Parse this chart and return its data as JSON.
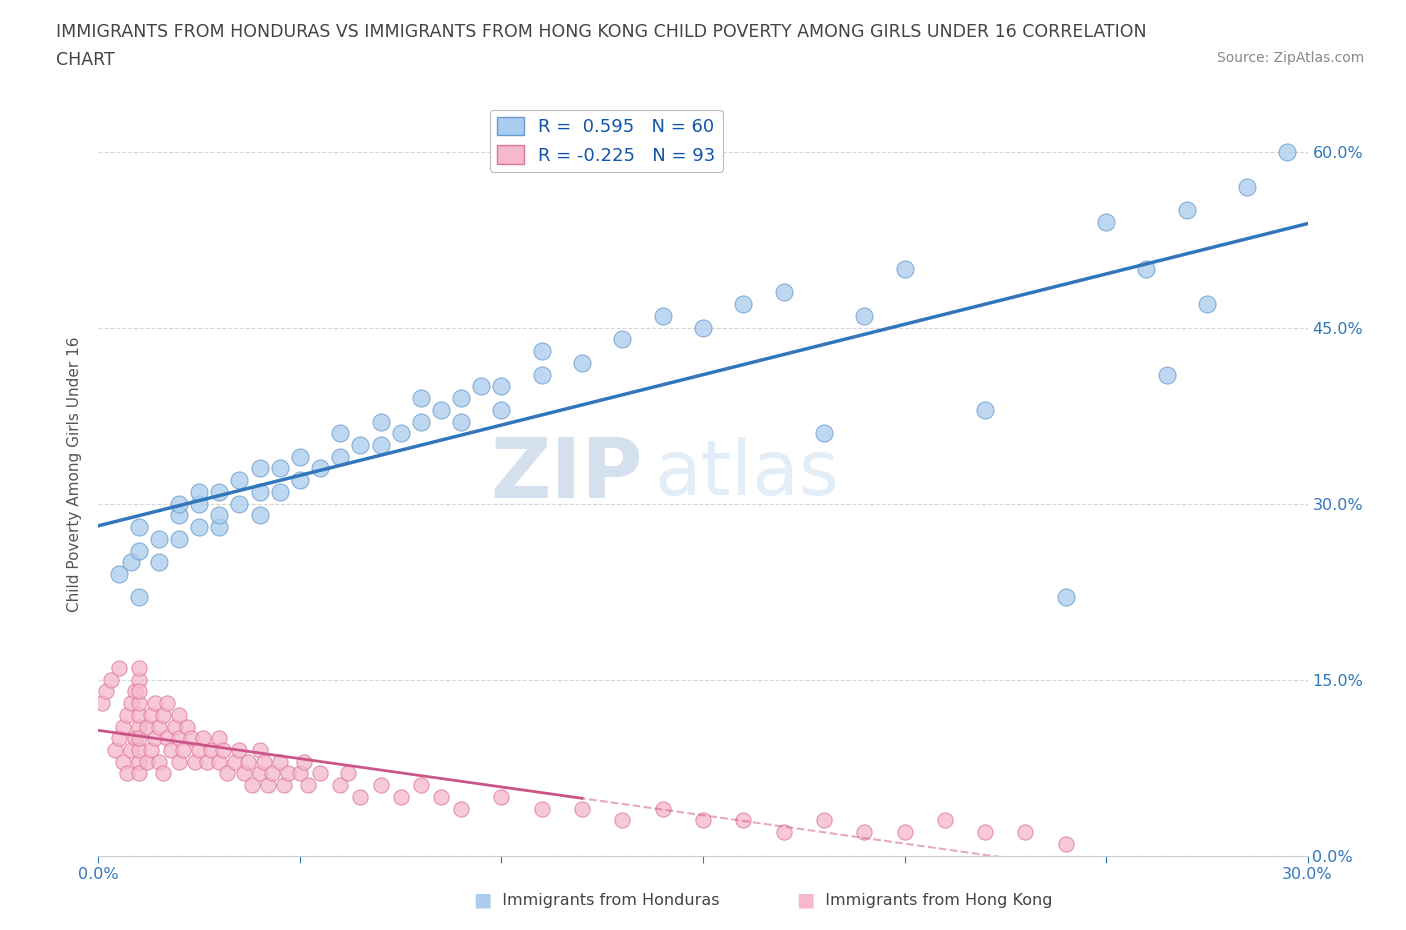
{
  "title_line1": "IMMIGRANTS FROM HONDURAS VS IMMIGRANTS FROM HONG KONG CHILD POVERTY AMONG GIRLS UNDER 16 CORRELATION",
  "title_line2": "CHART",
  "source": "Source: ZipAtlas.com",
  "ylabel": "Child Poverty Among Girls Under 16",
  "xlabel_honduras": "Immigrants from Honduras",
  "xlabel_hongkong": "Immigrants from Hong Kong",
  "xlim": [
    0.0,
    0.3
  ],
  "ylim": [
    0.0,
    0.65
  ],
  "yticks": [
    0.0,
    0.15,
    0.3,
    0.45,
    0.6
  ],
  "xticks": [
    0.0,
    0.05,
    0.1,
    0.15,
    0.2,
    0.25,
    0.3
  ],
  "honduras_R": 0.595,
  "honduras_N": 60,
  "hongkong_R": -0.225,
  "hongkong_N": 93,
  "honduras_color": "#aaccee",
  "honduras_edge_color": "#6699cc",
  "honduras_line_color": "#3377bb",
  "hongkong_color": "#f5b8cc",
  "hongkong_edge_color": "#dd7799",
  "hongkong_line_color": "#cc5588",
  "legend_R_color": "#1155aa",
  "watermark_zip": "ZIP",
  "watermark_atlas": "atlas",
  "background_color": "#ffffff",
  "title_color": "#444444",
  "title_fontsize": 12.5,
  "source_fontsize": 10,
  "hon_x": [
    0.005,
    0.008,
    0.01,
    0.01,
    0.01,
    0.015,
    0.015,
    0.02,
    0.02,
    0.02,
    0.025,
    0.025,
    0.025,
    0.03,
    0.03,
    0.03,
    0.035,
    0.035,
    0.04,
    0.04,
    0.04,
    0.045,
    0.045,
    0.05,
    0.05,
    0.055,
    0.06,
    0.06,
    0.065,
    0.07,
    0.07,
    0.075,
    0.08,
    0.08,
    0.085,
    0.09,
    0.09,
    0.095,
    0.1,
    0.1,
    0.11,
    0.11,
    0.12,
    0.13,
    0.14,
    0.15,
    0.16,
    0.17,
    0.18,
    0.19,
    0.2,
    0.22,
    0.24,
    0.25,
    0.26,
    0.265,
    0.27,
    0.275,
    0.285,
    0.295
  ],
  "hon_y": [
    0.24,
    0.25,
    0.22,
    0.26,
    0.28,
    0.25,
    0.27,
    0.27,
    0.29,
    0.3,
    0.28,
    0.3,
    0.31,
    0.28,
    0.29,
    0.31,
    0.3,
    0.32,
    0.29,
    0.31,
    0.33,
    0.31,
    0.33,
    0.32,
    0.34,
    0.33,
    0.34,
    0.36,
    0.35,
    0.35,
    0.37,
    0.36,
    0.37,
    0.39,
    0.38,
    0.37,
    0.39,
    0.4,
    0.38,
    0.4,
    0.41,
    0.43,
    0.42,
    0.44,
    0.46,
    0.45,
    0.47,
    0.48,
    0.36,
    0.46,
    0.5,
    0.38,
    0.22,
    0.54,
    0.5,
    0.41,
    0.55,
    0.47,
    0.57,
    0.6
  ],
  "hk_x": [
    0.001,
    0.002,
    0.003,
    0.004,
    0.005,
    0.005,
    0.006,
    0.006,
    0.007,
    0.007,
    0.008,
    0.008,
    0.009,
    0.009,
    0.01,
    0.01,
    0.01,
    0.01,
    0.01,
    0.01,
    0.01,
    0.01,
    0.01,
    0.01,
    0.012,
    0.012,
    0.013,
    0.013,
    0.014,
    0.014,
    0.015,
    0.015,
    0.016,
    0.016,
    0.017,
    0.017,
    0.018,
    0.019,
    0.02,
    0.02,
    0.02,
    0.021,
    0.022,
    0.023,
    0.024,
    0.025,
    0.026,
    0.027,
    0.028,
    0.03,
    0.03,
    0.031,
    0.032,
    0.034,
    0.035,
    0.036,
    0.037,
    0.038,
    0.04,
    0.04,
    0.041,
    0.042,
    0.043,
    0.045,
    0.046,
    0.047,
    0.05,
    0.051,
    0.052,
    0.055,
    0.06,
    0.062,
    0.065,
    0.07,
    0.075,
    0.08,
    0.085,
    0.09,
    0.1,
    0.11,
    0.12,
    0.13,
    0.14,
    0.15,
    0.16,
    0.17,
    0.18,
    0.19,
    0.2,
    0.21,
    0.22,
    0.23,
    0.24
  ],
  "hk_y": [
    0.13,
    0.14,
    0.15,
    0.09,
    0.1,
    0.16,
    0.11,
    0.08,
    0.12,
    0.07,
    0.13,
    0.09,
    0.14,
    0.1,
    0.15,
    0.11,
    0.08,
    0.12,
    0.09,
    0.13,
    0.1,
    0.14,
    0.07,
    0.16,
    0.11,
    0.08,
    0.12,
    0.09,
    0.13,
    0.1,
    0.11,
    0.08,
    0.12,
    0.07,
    0.1,
    0.13,
    0.09,
    0.11,
    0.1,
    0.12,
    0.08,
    0.09,
    0.11,
    0.1,
    0.08,
    0.09,
    0.1,
    0.08,
    0.09,
    0.1,
    0.08,
    0.09,
    0.07,
    0.08,
    0.09,
    0.07,
    0.08,
    0.06,
    0.09,
    0.07,
    0.08,
    0.06,
    0.07,
    0.08,
    0.06,
    0.07,
    0.07,
    0.08,
    0.06,
    0.07,
    0.06,
    0.07,
    0.05,
    0.06,
    0.05,
    0.06,
    0.05,
    0.04,
    0.05,
    0.04,
    0.04,
    0.03,
    0.04,
    0.03,
    0.03,
    0.02,
    0.03,
    0.02,
    0.02,
    0.03,
    0.02,
    0.02,
    0.01
  ]
}
